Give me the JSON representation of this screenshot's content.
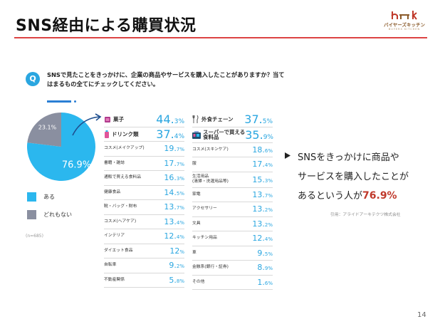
{
  "slide": {
    "title": "SNS経由による購買状況",
    "page_number": "14",
    "accent_color": "#d44444"
  },
  "logo": {
    "name": "バイヤーズキッチン",
    "sub": "BUYERS KITCHEN"
  },
  "question": {
    "badge": "Q",
    "text": "SNSで見たことをきっかけに、企業の商品やサービスを購入したことがありますか？当てはまるもの全てにチェックしてください。"
  },
  "chart_data": [
    {
      "type": "pie",
      "slices": [
        {
          "label": "ある",
          "value": 76.9,
          "value_text": "76.9%",
          "color": "#2bb7ee"
        },
        {
          "label": "どれもない",
          "value": 23.1,
          "value_text": "23.1%",
          "color": "#8a8fa0"
        }
      ],
      "note": "(n=685)"
    },
    {
      "type": "table",
      "columns": [
        {
          "rows": [
            {
              "label": "菓子",
              "num": "44.",
              "dec": "3%",
              "value": 44.3,
              "icon": "candy-icon",
              "top": true
            },
            {
              "label": "ドリンク類",
              "num": "37.",
              "dec": "4%",
              "value": 37.4,
              "icon": "drink-icon",
              "top": true
            },
            {
              "label": "コスメ(メイクアップ)",
              "num": "19.",
              "dec": "7%",
              "value": 19.7
            },
            {
              "label": "書籍・雑誌",
              "num": "17.",
              "dec": "7%",
              "value": 17.7
            },
            {
              "label": "通販で買える食料品",
              "num": "16.",
              "dec": "3%",
              "value": 16.3
            },
            {
              "label": "健康食品",
              "num": "14.",
              "dec": "5%",
              "value": 14.5
            },
            {
              "label": "靴・バッグ・財布",
              "num": "13.",
              "dec": "7%",
              "value": 13.7
            },
            {
              "label": "コスメ(ヘアケア)",
              "num": "13.",
              "dec": "4%",
              "value": 13.4
            },
            {
              "label": "インテリア",
              "num": "12.",
              "dec": "4%",
              "value": 12.4
            },
            {
              "label": "ダイエット食品",
              "num": "12",
              "dec": "%",
              "value": 12
            },
            {
              "label": "自転車",
              "num": "9.",
              "dec": "2%",
              "value": 9.2
            },
            {
              "label": "不動産関係",
              "num": "5.",
              "dec": "8%",
              "value": 5.8
            }
          ]
        },
        {
          "rows": [
            {
              "label": "外食チェーン",
              "num": "37.",
              "dec": "5%",
              "value": 37.5,
              "icon": "cutlery-icon",
              "top": true
            },
            {
              "label": "スーパーで買える|食料品",
              "num": "35.",
              "dec": "9%",
              "value": 35.9,
              "icon": "grocery-icon",
              "top": true
            },
            {
              "label": "コスメ(スキンケア)",
              "num": "18.",
              "dec": "6%",
              "value": 18.6
            },
            {
              "label": "服",
              "num": "17.",
              "dec": "4%",
              "value": 17.4
            },
            {
              "label": "生活用品|(清掃・洗濯用品等)",
              "num": "15.",
              "dec": "3%",
              "value": 15.3
            },
            {
              "label": "家電",
              "num": "13.",
              "dec": "7%",
              "value": 13.7
            },
            {
              "label": "アクセサリー",
              "num": "13.",
              "dec": "2%",
              "value": 13.2
            },
            {
              "label": "文具",
              "num": "13.",
              "dec": "2%",
              "value": 13.2
            },
            {
              "label": "キッチン用品",
              "num": "12.",
              "dec": "4%",
              "value": 12.4
            },
            {
              "label": "車",
              "num": "9.",
              "dec": "5%",
              "value": 9.5
            },
            {
              "label": "金融系(銀行・証券)",
              "num": "8.",
              "dec": "9%",
              "value": 8.9
            },
            {
              "label": "その他",
              "num": "1.",
              "dec": "6%",
              "value": 1.6
            }
          ]
        }
      ]
    }
  ],
  "summary": {
    "line1": "SNSをきっかけに商品や",
    "line2": "サービスを購入したことが",
    "line3_prefix": "あるという人が",
    "line3_highlight": "76.9%",
    "citation": "引用：アライドアーキテクツ株式会社"
  }
}
